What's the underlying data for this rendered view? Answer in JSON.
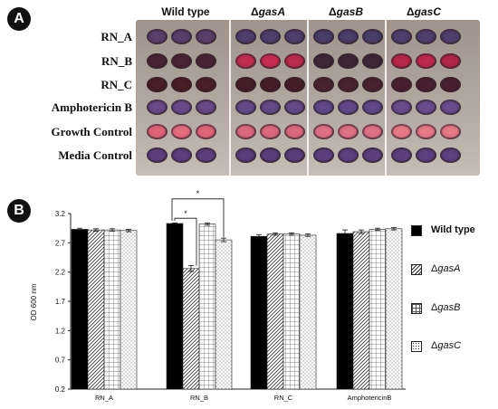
{
  "panel_a": {
    "badge": "A",
    "columns": [
      {
        "prefix": "",
        "name": "Wild type"
      },
      {
        "prefix": "Δ",
        "name": "gasA"
      },
      {
        "prefix": "Δ",
        "name": "gasB"
      },
      {
        "prefix": "Δ",
        "name": "gasC"
      }
    ],
    "rows": [
      "RN_A",
      "RN_B",
      "RN_C",
      "Amphotericin B",
      "Growth Control",
      "Media Control"
    ],
    "well_colors": [
      [
        "#5a3f6a",
        "#5a3f6a",
        "#5a3f6a",
        "#4e3f6e",
        "#4e3f6e",
        "#4e3f6e",
        "#4a3e6a",
        "#4a3e6a",
        "#4a3e6a",
        "#4e3f6e",
        "#4e3f6e",
        "#4e3f6e"
      ],
      [
        "#4a2535",
        "#4a2535",
        "#4a2535",
        "#c23050",
        "#c82d52",
        "#bd2d4e",
        "#3f2838",
        "#3f2838",
        "#3f2838",
        "#b8284a",
        "#bf2b4e",
        "#b02847"
      ],
      [
        "#4a1e26",
        "#4a1e26",
        "#4a1e26",
        "#461e28",
        "#461e28",
        "#461e28",
        "#4a2330",
        "#4a2330",
        "#4a2330",
        "#4a2030",
        "#4a2030",
        "#4a2030"
      ],
      [
        "#6a4a88",
        "#6a4a88",
        "#6a4a88",
        "#654a88",
        "#654a88",
        "#654a88",
        "#63488a",
        "#63488a",
        "#63488a",
        "#6a4c8e",
        "#6a4c8e",
        "#6a4c8e"
      ],
      [
        "#e0667a",
        "#e56e80",
        "#e0667a",
        "#dc6a7e",
        "#dc6a7e",
        "#dc6a7e",
        "#e07286",
        "#e07286",
        "#e07286",
        "#e87a88",
        "#e87a88",
        "#e87a88"
      ],
      [
        "#5e3f7e",
        "#5e3f7e",
        "#5e3f7e",
        "#5a3e7a",
        "#5a3e7a",
        "#5a3e7a",
        "#5e4080",
        "#5e4080",
        "#5e4080",
        "#5e4080",
        "#5e4080",
        "#5e4080"
      ]
    ]
  },
  "panel_b": {
    "badge": "B",
    "significance_marks": [
      "*",
      "*"
    ]
  },
  "legend": [
    {
      "prefix": "",
      "name": "Wild type",
      "pattern": "solid"
    },
    {
      "prefix": "Δ",
      "name": "gasA",
      "pattern": "diag"
    },
    {
      "prefix": "Δ",
      "name": "gasB",
      "pattern": "grid"
    },
    {
      "prefix": "Δ",
      "name": "gasC",
      "pattern": "dots"
    }
  ],
  "chart_data": {
    "type": "bar",
    "categories": [
      "RN_A",
      "RN_B",
      "RN_C",
      "AmphotericinB"
    ],
    "series": [
      {
        "name": "Wild type",
        "values": [
          2.93,
          3.03,
          2.81,
          2.86
        ],
        "errors": [
          0.02,
          0.01,
          0.03,
          0.06
        ]
      },
      {
        "name": "ΔgasA",
        "values": [
          2.92,
          2.26,
          2.85,
          2.89
        ],
        "errors": [
          0.02,
          0.05,
          0.02,
          0.03
        ]
      },
      {
        "name": "ΔgasB",
        "values": [
          2.92,
          3.02,
          2.85,
          2.93
        ],
        "errors": [
          0.02,
          0.02,
          0.02,
          0.02
        ]
      },
      {
        "name": "ΔgasC",
        "values": [
          2.91,
          2.75,
          2.83,
          2.94
        ],
        "errors": [
          0.02,
          0.03,
          0.02,
          0.02
        ]
      }
    ],
    "ylabel": "OD 600 nm",
    "ylim": [
      0.2,
      3.2
    ],
    "yticks": [
      "0.2",
      "0.7",
      "1.2",
      "1.7",
      "2.2",
      "2.7",
      "3.2"
    ],
    "grid": false,
    "legend": "right"
  }
}
